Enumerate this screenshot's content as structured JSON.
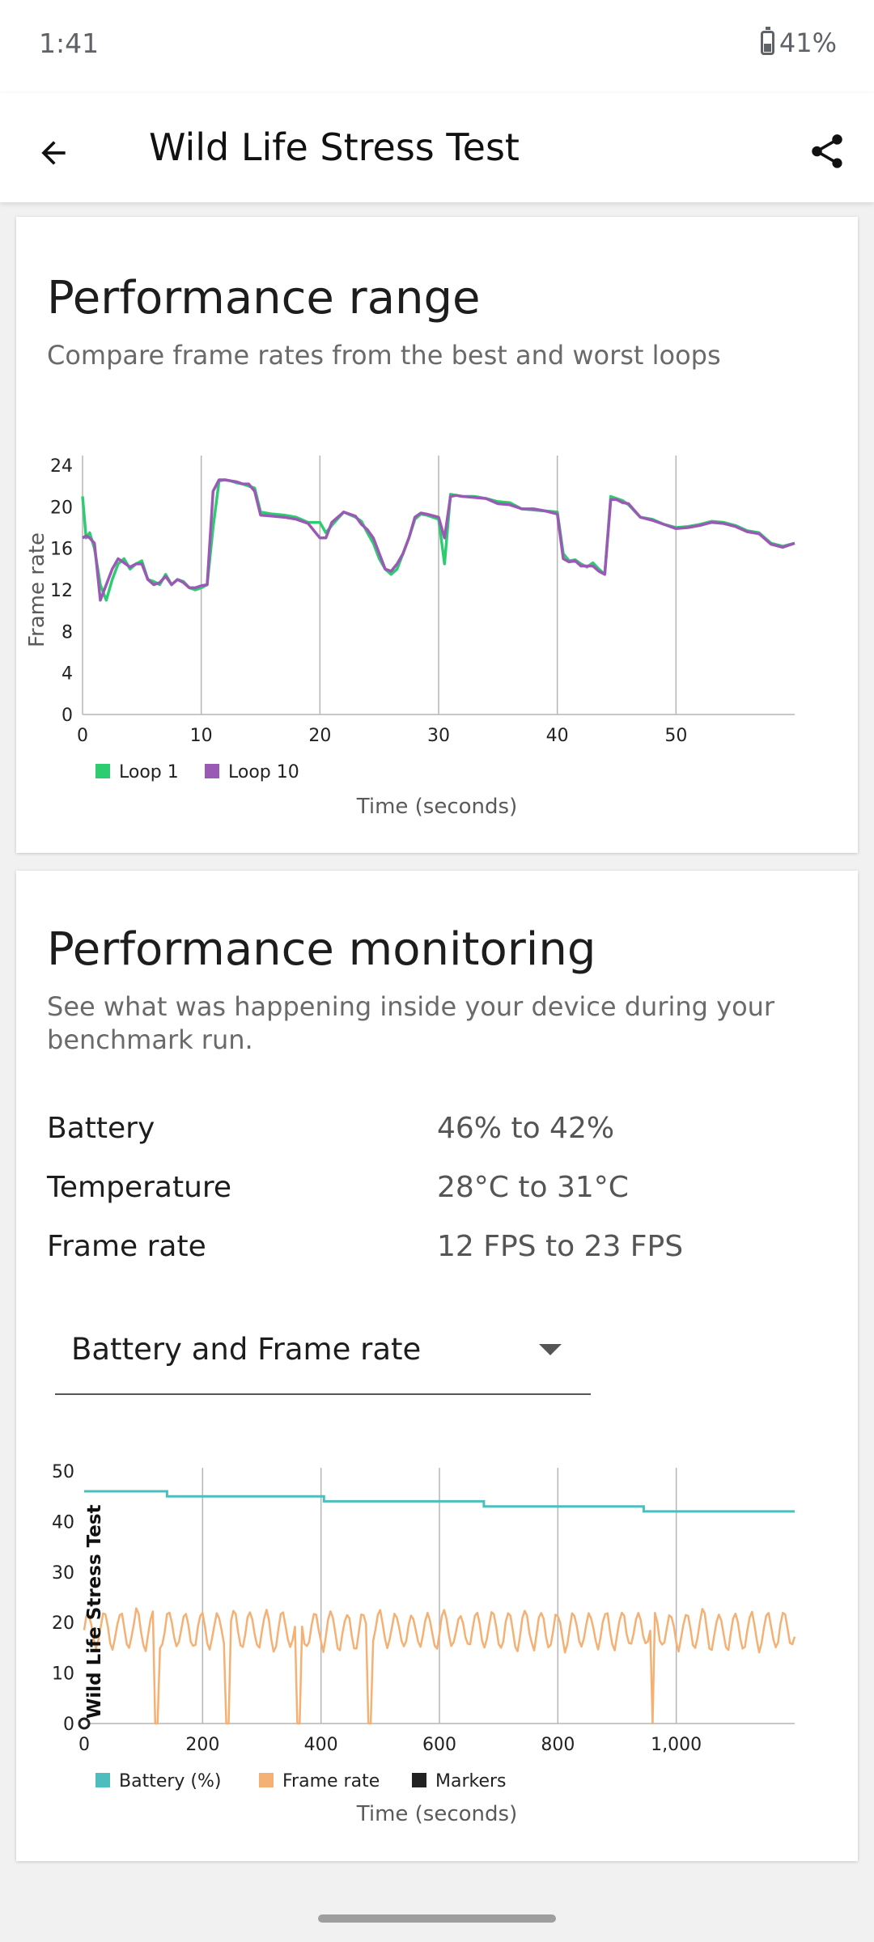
{
  "status_bar": {
    "time": "1:41",
    "battery": "41%"
  },
  "app_bar": {
    "title": "Wild Life Stress Test",
    "back_icon": "arrow-left-icon",
    "share_icon": "share-icon"
  },
  "performance_range": {
    "title": "Performance range",
    "subtitle": "Compare frame rates from the best and worst loops"
  },
  "performance_monitoring": {
    "title": "Performance monitoring",
    "subtitle": "See what was happening inside your device during your benchmark run.",
    "stats": [
      {
        "label": "Battery",
        "value": "46% to 42%"
      },
      {
        "label": "Temperature",
        "value": "28°C to 31°C"
      },
      {
        "label": "Frame rate",
        "value": "12 FPS to 23 FPS"
      }
    ],
    "dropdown": {
      "selected": "Battery and Frame rate"
    }
  },
  "chart_data": [
    {
      "type": "line",
      "xlabel": "Time (seconds)",
      "ylabel": "Frame rate",
      "xlim": [
        0,
        60
      ],
      "ylim": [
        0,
        24
      ],
      "x_ticks": [
        0,
        10,
        20,
        30,
        40,
        50
      ],
      "y_ticks": [
        0,
        4,
        8,
        12,
        16,
        20,
        24
      ],
      "grid": "vertical",
      "legend": "bottom-left",
      "series": [
        {
          "name": "Loop 1",
          "color": "#2ecc71",
          "x": [
            0,
            0.3,
            0.6,
            1,
            1.5,
            2,
            2.5,
            3,
            3.5,
            4,
            4.5,
            5,
            5.5,
            6,
            6.5,
            7,
            7.5,
            8,
            8.5,
            9,
            9.5,
            10,
            10.5,
            11,
            11.5,
            12,
            12.5,
            13,
            13.5,
            14,
            14.5,
            15,
            16,
            17,
            18,
            19,
            20,
            20.5,
            21,
            22,
            23,
            23.5,
            24,
            24.5,
            25,
            25.5,
            26,
            26.5,
            27,
            27.5,
            28,
            28.5,
            29,
            30,
            30.5,
            31,
            31.5,
            32,
            33,
            34,
            35,
            36,
            37,
            38,
            39,
            40,
            40.5,
            41,
            41.5,
            42,
            42.5,
            43,
            43.5,
            44,
            44.5,
            45,
            45.5,
            46,
            47,
            48,
            49,
            50,
            51,
            52,
            53,
            54,
            55,
            56,
            57,
            58,
            59,
            60
          ],
          "y": [
            21,
            17,
            17.5,
            16,
            12.5,
            11,
            13,
            14.5,
            15,
            14,
            14.5,
            14.8,
            13,
            12.8,
            12.5,
            13.5,
            12.5,
            13,
            12.8,
            12.2,
            12,
            12.2,
            12.5,
            18,
            22.5,
            22.6,
            22.5,
            22.3,
            22.2,
            22,
            21.8,
            19.5,
            19.3,
            19.2,
            19,
            18.5,
            18.5,
            17.5,
            18.2,
            19.5,
            19,
            18.6,
            17.5,
            16.5,
            15,
            14,
            13.5,
            14,
            15.5,
            17,
            18.8,
            19.3,
            19.2,
            18.8,
            14.5,
            21.2,
            21.1,
            21,
            21,
            20.8,
            20.5,
            20.4,
            19.8,
            19.7,
            19.6,
            19.5,
            15.5,
            14.8,
            14.9,
            14.5,
            14.2,
            14.6,
            14,
            13.5,
            21,
            20.8,
            20.6,
            20.2,
            19,
            18.8,
            18.3,
            18,
            18.1,
            18.3,
            18.6,
            18.5,
            18.2,
            17.7,
            17.5,
            16.5,
            16.2,
            16.5
          ]
        },
        {
          "name": "Loop 10",
          "color": "#9b59b6",
          "x": [
            0,
            0.3,
            0.6,
            1,
            1.5,
            2,
            2.5,
            3,
            3.5,
            4,
            4.5,
            5,
            5.5,
            6,
            6.5,
            7,
            7.5,
            8,
            8.5,
            9,
            9.5,
            10,
            10.5,
            11,
            11.5,
            12,
            12.5,
            13,
            13.5,
            14,
            14.5,
            15,
            16,
            17,
            18,
            19,
            20,
            20.5,
            21,
            22,
            23,
            23.5,
            24,
            24.5,
            25,
            25.5,
            26,
            26.5,
            27,
            27.5,
            28,
            28.5,
            29,
            30,
            30.5,
            31,
            31.5,
            32,
            33,
            34,
            35,
            36,
            37,
            38,
            39,
            40,
            40.5,
            41,
            41.5,
            42,
            42.5,
            43,
            43.5,
            44,
            44.5,
            45,
            45.5,
            46,
            47,
            48,
            49,
            50,
            51,
            52,
            53,
            54,
            55,
            56,
            57,
            58,
            59,
            60
          ],
          "y": [
            17,
            17.2,
            17,
            16.5,
            11,
            12.5,
            14,
            15,
            14.6,
            14.2,
            14.5,
            14.5,
            13,
            12.5,
            12.7,
            13.3,
            12.5,
            13,
            12.7,
            12.2,
            12.2,
            12.4,
            12.5,
            21.5,
            22.6,
            22.6,
            22.5,
            22.4,
            22.2,
            22.2,
            21.5,
            19.2,
            19.1,
            19,
            18.8,
            18.4,
            17,
            17,
            18.5,
            19.5,
            19.1,
            18.3,
            17.8,
            17,
            15.5,
            14,
            13.8,
            14.5,
            15.5,
            17,
            19,
            19.4,
            19.3,
            19,
            17,
            21,
            21.1,
            21,
            20.9,
            20.8,
            20.3,
            20.2,
            19.8,
            19.8,
            19.6,
            19.3,
            15,
            14.7,
            14.8,
            14.3,
            14.3,
            14.3,
            13.8,
            13.5,
            20.7,
            20.7,
            20.4,
            20.3,
            19,
            18.7,
            18.3,
            17.9,
            18,
            18.2,
            18.5,
            18.4,
            18.1,
            17.6,
            17.4,
            16.4,
            16.1,
            16.5
          ]
        }
      ]
    },
    {
      "type": "line",
      "xlabel": "Time (seconds)",
      "xlim": [
        0,
        1200
      ],
      "ylim": [
        0,
        50
      ],
      "x_ticks": [
        0,
        200,
        400,
        600,
        800,
        1000
      ],
      "x_tick_labels": [
        "0",
        "200",
        "400",
        "600",
        "800",
        "1,000"
      ],
      "y_ticks": [
        0,
        10,
        20,
        30,
        40,
        50
      ],
      "grid": "vertical",
      "legend": "bottom-left",
      "marker_label": "Wild Life Stress Test",
      "series": [
        {
          "name": "Battery (%)",
          "color": "#4fbdbd",
          "steps": [
            [
              0,
              46
            ],
            [
              140,
              45
            ],
            [
              405,
              44
            ],
            [
              675,
              43
            ],
            [
              945,
              42
            ],
            [
              1200,
              42
            ]
          ]
        },
        {
          "name": "Frame rate",
          "color": "#f5b073",
          "dropouts": [
            123,
            243,
            363,
            483,
            960
          ],
          "range": [
            12,
            23
          ]
        },
        {
          "name": "Markers",
          "color": "#222222",
          "x": [
            0
          ]
        }
      ]
    }
  ]
}
